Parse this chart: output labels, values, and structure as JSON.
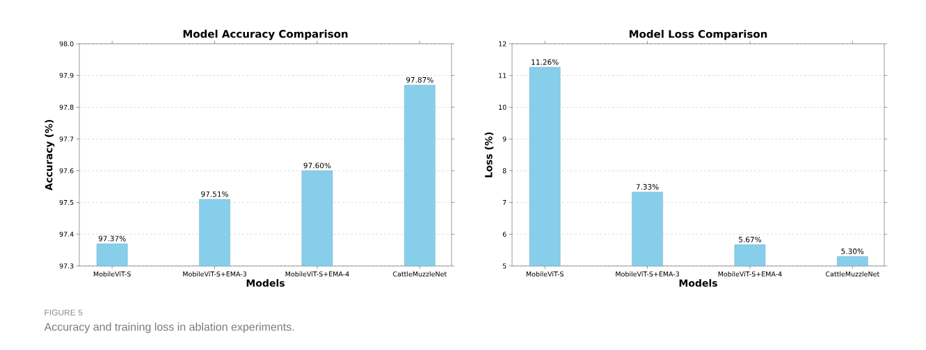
{
  "chart_data": [
    {
      "type": "bar",
      "title": "Model Accuracy Comparison",
      "xlabel": "Models",
      "ylabel": "Accuracy (%)",
      "categories": [
        "MobileViT-S",
        "MobileViT-S+EMA-3",
        "MobileViT-S+EMA-4",
        "CattleMuzzleNet"
      ],
      "values": [
        97.37,
        97.51,
        97.6,
        97.87
      ],
      "value_labels": [
        "97.37%",
        "97.51%",
        "97.60%",
        "97.87%"
      ],
      "color": "#87ceeb",
      "ylim": [
        97.3,
        98.0
      ],
      "yticks": [
        97.3,
        97.4,
        97.5,
        97.6,
        97.7,
        97.8,
        97.9,
        {
          "value": 98.0,
          "label": "98.0"
        }
      ],
      "grid": "y",
      "annotations": [
        "FIGURE 5",
        "Accuracy and training loss in ablation experiments."
      ]
    },
    {
      "type": "bar",
      "title": "Model Loss Comparison",
      "xlabel": "Models",
      "ylabel": "Loss (%)",
      "categories": [
        "MobileViT-S",
        "MobileViT-S+EMA-3",
        "MobileViT-S+EMA-4",
        "CattleMuzzleNet"
      ],
      "values": [
        11.26,
        7.33,
        5.67,
        5.3
      ],
      "value_labels": [
        "11.26%",
        "7.33%",
        "5.67%",
        "5.30%"
      ],
      "color": "#87ceeb",
      "ylim": [
        5,
        12
      ],
      "yticks": [
        5,
        6,
        7,
        8,
        9,
        10,
        11,
        12
      ],
      "grid": "y"
    }
  ]
}
